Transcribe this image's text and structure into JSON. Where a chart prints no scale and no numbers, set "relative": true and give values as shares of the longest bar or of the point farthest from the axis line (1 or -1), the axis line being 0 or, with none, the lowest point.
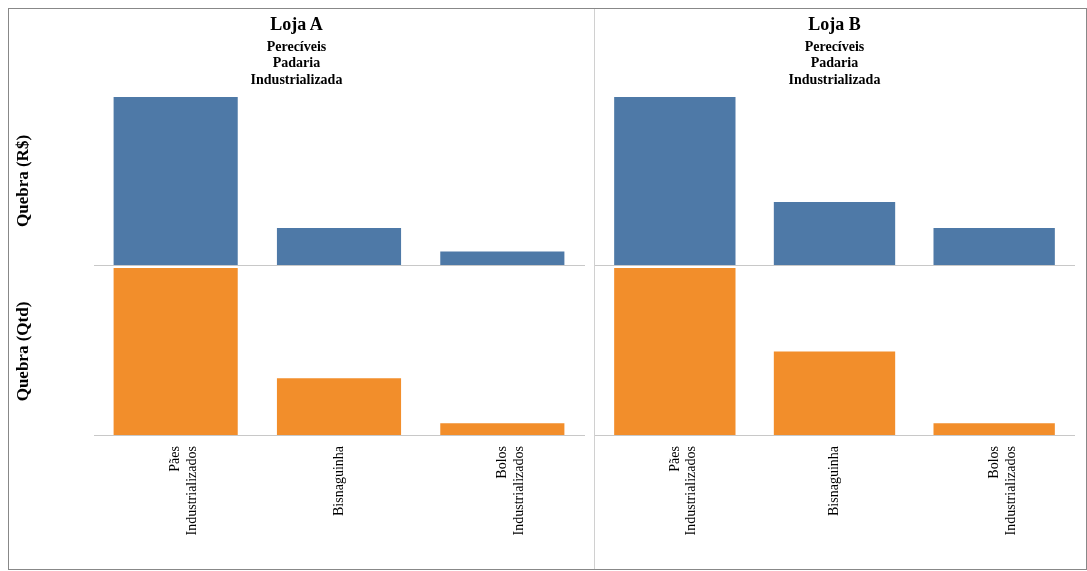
{
  "chart_data": [
    {
      "type": "bar",
      "title": "Loja A",
      "subtitle": "Perecíveis\nPadaria\nIndustrializada",
      "ylabel": "Quebra (R$)",
      "categories": [
        null,
        null,
        null
      ],
      "values": [
        1,
        0.22,
        0.08
      ],
      "color": "#4e79a7",
      "relative": true,
      "tick_labels": false
    },
    {
      "type": "bar",
      "title": "Loja B",
      "subtitle": "Perecíveis\nPadaria\nIndustrializada",
      "categories": [
        null,
        null,
        null
      ],
      "values": [
        1,
        0.375,
        0.22
      ],
      "color": "#4e79a7",
      "relative": true,
      "tick_labels": false
    },
    {
      "type": "bar",
      "ylabel": "Quebra (Qtd)",
      "categories": [
        "Pães Industrializados",
        "Bisnaguinha",
        "Bolos Industrializados"
      ],
      "values": [
        1,
        0.34,
        0.07
      ],
      "color": "#f28e2b",
      "relative": true,
      "tick_labels": "x"
    },
    {
      "type": "bar",
      "categories": [
        "Pães Industrializados",
        "Bisnaguinha",
        "Bolos Industrializados"
      ],
      "values": [
        1,
        0.5,
        0.07
      ],
      "color": "#f28e2b",
      "relative": true,
      "tick_labels": "x"
    }
  ]
}
